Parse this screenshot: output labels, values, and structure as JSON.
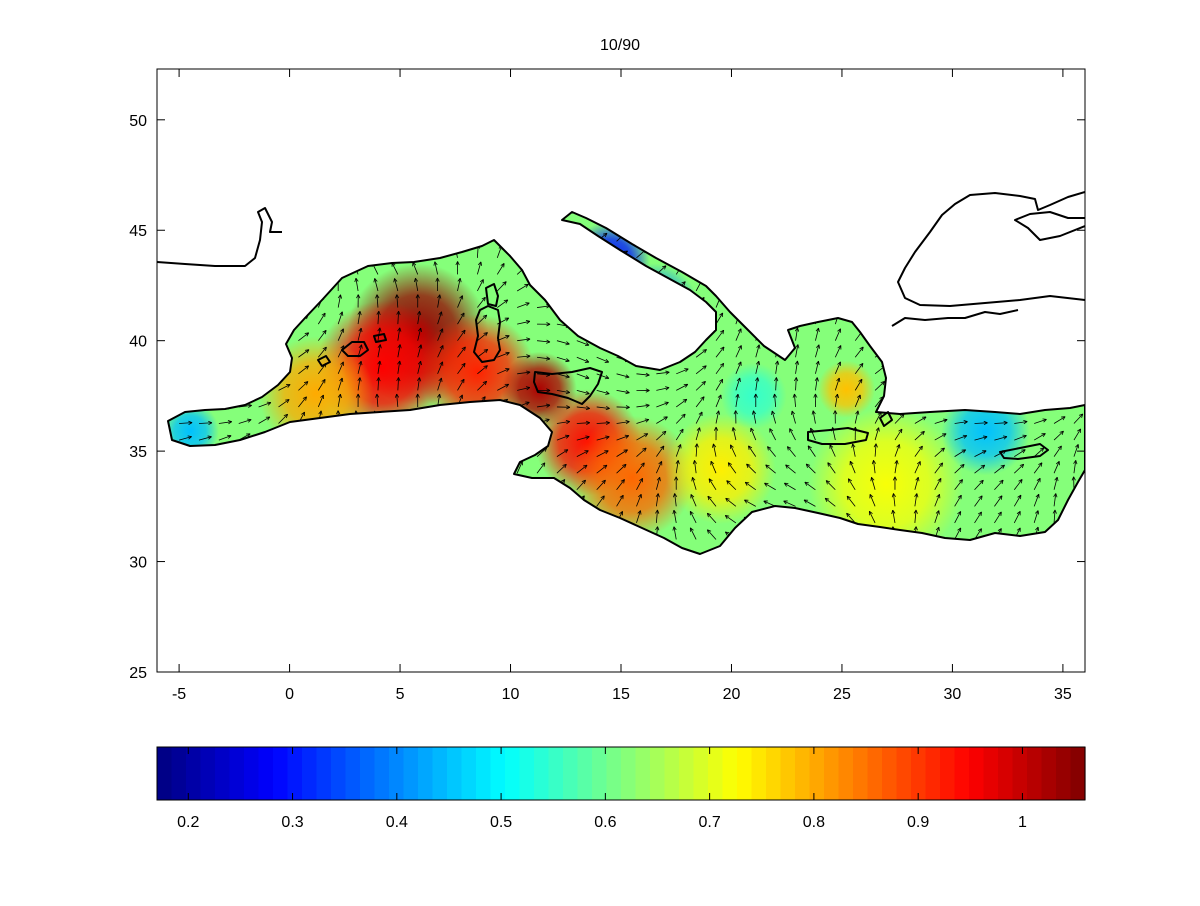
{
  "chart_data": {
    "type": "heatmap",
    "title": "10/90",
    "xlim": [
      -6,
      36
    ],
    "ylim": [
      25,
      52.3
    ],
    "xticks": [
      -5,
      0,
      5,
      10,
      15,
      20,
      25,
      30,
      35
    ],
    "yticks": [
      25,
      30,
      35,
      40,
      45,
      50
    ],
    "grid": false,
    "overlay": "wind-vector arrows",
    "colorbar": {
      "orientation": "horizontal",
      "placement": "bottom",
      "colormap": "jet",
      "clim": [
        0.17,
        1.06
      ],
      "ticks": [
        0.2,
        0.3,
        0.4,
        0.5,
        0.6,
        0.7,
        0.8,
        0.9,
        1
      ]
    },
    "field_blobs": [
      {
        "lon": 5.8,
        "lat": 40.3,
        "value": 1.04,
        "radius": 3.2
      },
      {
        "lon": 4.2,
        "lat": 38.8,
        "value": 0.95,
        "radius": 3.0
      },
      {
        "lon": 8.5,
        "lat": 38.6,
        "value": 0.92,
        "radius": 2.6
      },
      {
        "lon": 11.3,
        "lat": 37.8,
        "value": 1.02,
        "radius": 1.7
      },
      {
        "lon": 13.5,
        "lat": 35.4,
        "value": 0.94,
        "radius": 2.4
      },
      {
        "lon": 15.5,
        "lat": 33.8,
        "value": 0.86,
        "radius": 2.8
      },
      {
        "lon": 1.2,
        "lat": 37.6,
        "value": 0.8,
        "radius": 2.6
      },
      {
        "lon": 19.5,
        "lat": 34.2,
        "value": 0.74,
        "radius": 2.5
      },
      {
        "lon": 27.0,
        "lat": 33.5,
        "value": 0.72,
        "radius": 3.5
      },
      {
        "lon": 25.2,
        "lat": 37.8,
        "value": 0.78,
        "radius": 1.3
      },
      {
        "lon": 16.5,
        "lat": 41.5,
        "value": 0.4,
        "radius": 2.0
      },
      {
        "lon": 14.5,
        "lat": 43.6,
        "value": 0.3,
        "radius": 1.8
      },
      {
        "lon": 31.5,
        "lat": 35.9,
        "value": 0.45,
        "radius": 2.0
      },
      {
        "lon": -4.5,
        "lat": 35.9,
        "value": 0.45,
        "radius": 1.3
      },
      {
        "lon": 21.0,
        "lat": 37.5,
        "value": 0.55,
        "radius": 1.5
      }
    ]
  }
}
